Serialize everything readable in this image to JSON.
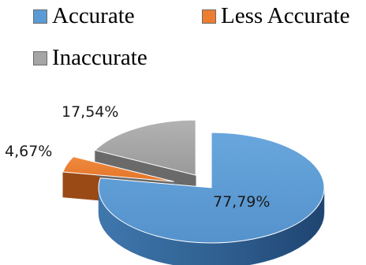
{
  "chart_data": {
    "type": "pie",
    "style": "3d-exploded",
    "title": "",
    "legend_position": "top",
    "slices": [
      {
        "name": "Accurate",
        "value": 77.79,
        "label": "77,79%",
        "color": "#5b9bd5",
        "side_color": "#3a6d9e"
      },
      {
        "name": "Less Accurate",
        "value": 4.67,
        "label": "4,67%",
        "color": "#ed7d31",
        "side_color": "#9a4a15"
      },
      {
        "name": "Inaccurate",
        "value": 17.54,
        "label": "17,54%",
        "color": "#a5a5a5",
        "side_color": "#6a6a6a"
      }
    ]
  }
}
